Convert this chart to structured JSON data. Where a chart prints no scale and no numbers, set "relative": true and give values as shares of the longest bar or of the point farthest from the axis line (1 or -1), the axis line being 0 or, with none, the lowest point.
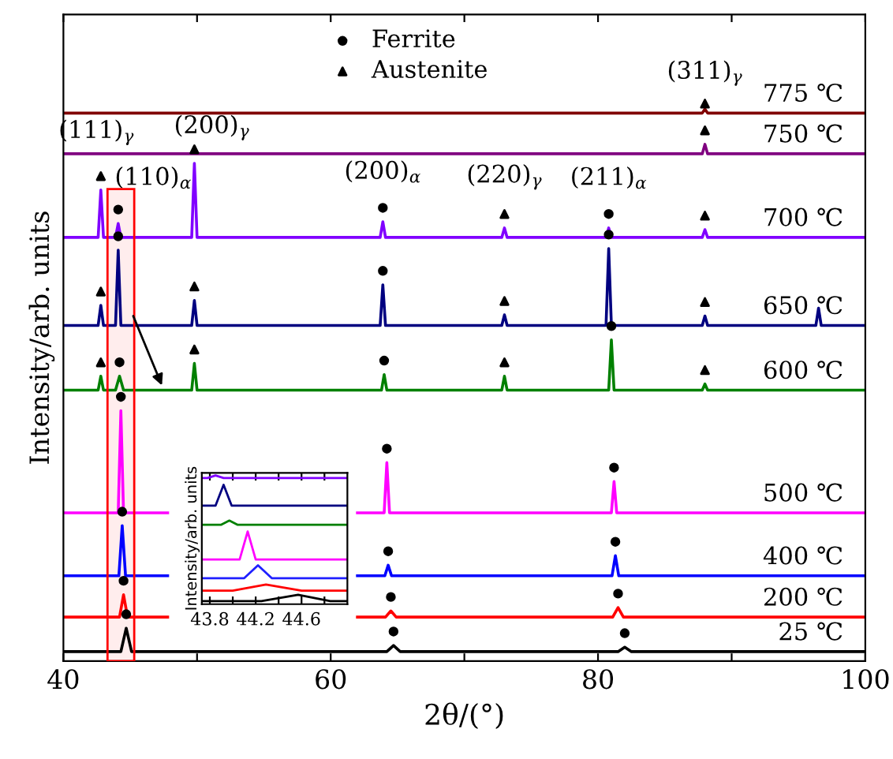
{
  "chart_data": [
    {
      "type": "line",
      "relative": true,
      "xlabel": "2θ/(°)",
      "ylabel": "Intensity/arb. units",
      "xlim": [
        40,
        100
      ],
      "xticks": [
        40,
        {
          "value": 50,
          "label": null
        },
        60,
        {
          "value": 70,
          "label": null
        },
        80,
        {
          "value": 90,
          "label": null
        },
        100
      ],
      "legend": "top",
      "grid": false,
      "marker": "none",
      "line_style": "solid",
      "bands": [
        {
          "axis": "x",
          "from": 43.3,
          "to": 45.3,
          "color": "#ff0000"
        }
      ],
      "series": [
        {
          "name": "25 ℃",
          "color": "#000000",
          "x": [
            40,
            44.3,
            44.7,
            45.1,
            64.2,
            64.7,
            65.2,
            81.5,
            82,
            82.5,
            100
          ],
          "values": [
            0.017,
            0.017,
            0.059,
            0.017,
            0.017,
            0.028,
            0.017,
            0.017,
            0.025,
            0.017,
            0.017
          ]
        },
        {
          "name": "200 ℃",
          "color": "#ff0000",
          "x": [
            40,
            44.2,
            44.5,
            44.8,
            47.8,
            55,
            62,
            64.1,
            64.5,
            64.9,
            81.1,
            81.5,
            81.9,
            100
          ],
          "values": [
            0.079,
            0.079,
            0.119,
            0.079,
            0.079,
            null,
            0.079,
            0.079,
            0.09,
            0.079,
            0.079,
            0.096,
            0.079,
            0.079
          ]
        },
        {
          "name": "400 ℃",
          "color": "#0000ff",
          "x": [
            40,
            44.15,
            44.4,
            44.65,
            47.8,
            55,
            62,
            64.05,
            64.3,
            64.55,
            81.05,
            81.3,
            81.55,
            100
          ],
          "values": [
            0.153,
            0.153,
            0.243,
            0.153,
            0.153,
            null,
            0.153,
            0.153,
            0.172,
            0.153,
            0.153,
            0.189,
            0.153,
            0.153
          ]
        },
        {
          "name": "500 ℃",
          "color": "#ff00ff",
          "x": [
            40,
            44.1,
            44.3,
            44.5,
            47.8,
            55,
            62,
            64,
            64.2,
            64.4,
            81,
            81.2,
            81.4,
            100
          ],
          "values": [
            0.266,
            0.266,
            0.449,
            0.266,
            0.266,
            null,
            0.266,
            0.266,
            0.356,
            0.266,
            0.266,
            0.322,
            0.266,
            0.266
          ]
        },
        {
          "name": "600 ℃",
          "color": "#008000",
          "x": [
            40,
            42.6,
            42.8,
            43,
            43.9,
            44.2,
            44.5,
            49.6,
            49.8,
            50,
            63.8,
            64,
            64.2,
            72.8,
            73,
            73.2,
            80.8,
            81,
            81.2,
            87.8,
            88,
            88.2,
            100
          ],
          "values": [
            0.486,
            0.486,
            0.511,
            0.486,
            0.486,
            0.511,
            0.486,
            0.486,
            0.534,
            0.486,
            0.486,
            0.514,
            0.486,
            0.486,
            0.511,
            0.486,
            0.486,
            0.576,
            0.486,
            0.486,
            0.497,
            0.486,
            0.486
          ]
        },
        {
          "name": "650 ℃",
          "color": "#000080",
          "x": [
            40,
            42.6,
            42.8,
            43,
            43.9,
            44.1,
            44.3,
            49.6,
            49.8,
            50,
            63.7,
            63.9,
            64.1,
            72.8,
            73,
            73.2,
            80.6,
            80.8,
            81,
            87.8,
            88,
            88.2,
            96.3,
            96.5,
            96.7,
            100
          ],
          "values": [
            0.602,
            0.602,
            0.638,
            0.602,
            0.602,
            0.737,
            0.602,
            0.602,
            0.647,
            0.602,
            0.602,
            0.675,
            0.602,
            0.602,
            0.621,
            0.602,
            0.602,
            0.74,
            0.602,
            0.602,
            0.619,
            0.602,
            0.602,
            0.633,
            0.602,
            0.602
          ]
        },
        {
          "name": "700 ℃",
          "color": "#8000ff",
          "x": [
            40,
            42.6,
            42.8,
            43,
            43.9,
            44.1,
            44.3,
            49.6,
            49.8,
            50,
            63.7,
            63.9,
            64.1,
            72.8,
            73,
            73.2,
            80.6,
            80.8,
            81,
            87.8,
            88,
            88.2,
            100
          ],
          "values": [
            0.76,
            0.76,
            0.845,
            0.76,
            0.76,
            0.785,
            0.76,
            0.76,
            0.893,
            0.76,
            0.76,
            0.788,
            0.76,
            0.76,
            0.777,
            0.76,
            0.76,
            0.777,
            0.76,
            0.76,
            0.774,
            0.76,
            0.76
          ]
        },
        {
          "name": "750 ℃",
          "color": "#800080",
          "x": [
            40,
            87.8,
            88,
            88.2,
            100
          ],
          "values": [
            0.91,
            0.91,
            0.927,
            0.91,
            0.91
          ]
        },
        {
          "name": "775 ℃",
          "color": "#800000",
          "x": [
            40,
            87.8,
            88,
            88.2,
            100
          ],
          "values": [
            0.983,
            0.983,
            0.99,
            0.983,
            0.983
          ]
        },
        {
          "name": "Ferrite",
          "type": "scatter",
          "marker": "circle",
          "color": "#000000",
          "x": [
            44.7,
            64.7,
            82,
            44.5,
            64.5,
            81.5,
            44.4,
            64.3,
            81.3,
            44.3,
            64.2,
            81.2,
            44.2,
            64,
            81,
            44.1,
            63.9,
            80.8,
            44.1,
            63.9,
            80.8
          ],
          "values": [
            0.084,
            0.053,
            0.05,
            0.144,
            0.115,
            0.121,
            0.268,
            0.197,
            0.214,
            0.474,
            0.381,
            0.347,
            0.536,
            0.539,
            0.601,
            0.762,
            0.7,
            0.765,
            0.81,
            0.813,
            0.802
          ]
        },
        {
          "name": "Austenite",
          "type": "scatter",
          "marker": "triangle",
          "color": "#000000",
          "x": [
            42.8,
            49.8,
            73,
            88,
            42.8,
            49.8,
            73,
            88,
            42.8,
            49.8,
            73,
            88,
            88,
            88
          ],
          "values": [
            0.536,
            0.559,
            0.536,
            0.522,
            0.663,
            0.672,
            0.646,
            0.644,
            0.87,
            0.918,
            0.802,
            0.799,
            0.952,
            1.0
          ]
        }
      ],
      "annotations": [
        {
          "text": "(111)$_{γ}$",
          "x": 42.8,
          "y": 0.87
        },
        {
          "text": "(200)$_{γ}$",
          "x": 49.8,
          "y": 0.918
        },
        {
          "text": "(110)$_{α}$",
          "x": 44.1,
          "y": 0.81
        },
        {
          "text": "(200)$_{α}$",
          "x": 63.9,
          "y": 0.813
        },
        {
          "text": "(220)$_{γ}$",
          "x": 73,
          "y": 0.802
        },
        {
          "text": "(211)$_{α}$",
          "x": 80.8,
          "y": 0.802
        },
        {
          "text": "(311)$_{γ}$",
          "x": 88,
          "y": 1.0
        }
      ]
    },
    {
      "type": "line",
      "relative": true,
      "ylabel": "Intensity/arb. units",
      "xlim": [
        43.73,
        45.0
      ],
      "xticks": [
        43.8,
        {
          "value": 44.0,
          "label": null
        },
        44.2,
        {
          "value": 44.4,
          "label": null
        },
        44.6,
        {
          "value": 44.8,
          "label": null
        }
      ],
      "tick_labels": "x",
      "grid": false,
      "marker": "none",
      "line_style": "solid",
      "series": [
        {
          "color": "#8000ff",
          "x": [
            43.73,
            43.78,
            43.85,
            43.92,
            45.0
          ],
          "values": [
            0.98,
            0.98,
            1.0,
            0.98,
            0.98
          ]
        },
        {
          "color": "#000080",
          "x": [
            43.73,
            43.85,
            43.92,
            43.99,
            45.0
          ],
          "values": [
            0.766,
            0.766,
            0.927,
            0.766,
            0.766
          ]
        },
        {
          "color": "#008000",
          "x": [
            43.73,
            43.9,
            43.97,
            44.04,
            45.0
          ],
          "values": [
            0.617,
            0.617,
            0.649,
            0.617,
            0.617
          ]
        },
        {
          "color": "#ff00ff",
          "x": [
            43.73,
            44.06,
            44.13,
            44.2,
            45.0
          ],
          "values": [
            0.347,
            0.347,
            0.565,
            0.347,
            0.347
          ]
        },
        {
          "color": "#2020ff",
          "x": [
            43.73,
            44.1,
            44.22,
            44.34,
            45.0
          ],
          "values": [
            0.202,
            0.202,
            0.302,
            0.202,
            0.202
          ]
        },
        {
          "color": "#ff0000",
          "x": [
            43.73,
            44.0,
            44.29,
            44.6,
            45.0
          ],
          "values": [
            0.105,
            0.105,
            0.153,
            0.105,
            0.105
          ]
        },
        {
          "color": "#000000",
          "x": [
            43.73,
            44.25,
            44.57,
            44.85,
            45.0
          ],
          "values": [
            0.024,
            0.024,
            0.073,
            0.024,
            0.024
          ]
        }
      ]
    }
  ]
}
